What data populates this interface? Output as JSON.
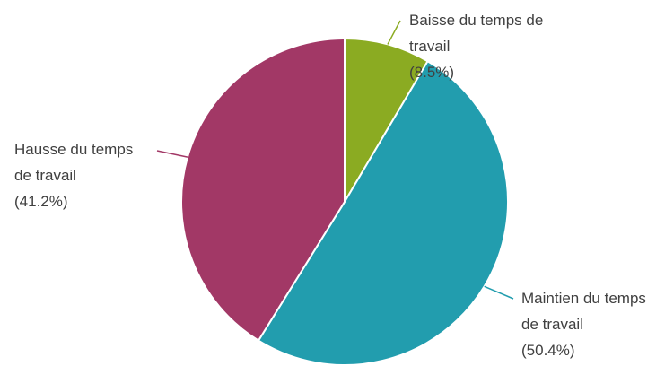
{
  "chart_data": {
    "type": "pie",
    "title": "",
    "start_angle_deg": 0,
    "direction": "clockwise",
    "slices": [
      {
        "label_lines": [
          "Baisse du temps de",
          "travail",
          "(8.5%)"
        ],
        "category": "Baisse du temps de travail",
        "value": 8.5,
        "color": "#8bab22"
      },
      {
        "label_lines": [
          "Maintien du temps",
          "de travail",
          "(50.4%)"
        ],
        "category": "Maintien du temps de travail",
        "value": 50.4,
        "color": "#229dae"
      },
      {
        "label_lines": [
          "Hausse du temps",
          "de travail",
          "(41.2%)"
        ],
        "category": "Hausse du temps de travail",
        "value": 41.2,
        "color": "#a23866"
      }
    ]
  }
}
